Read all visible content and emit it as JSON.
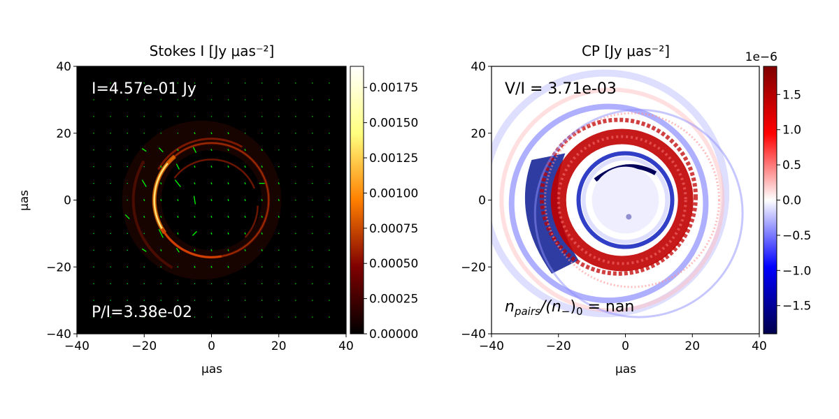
{
  "chart_data": [
    {
      "type": "heatmap",
      "title": "Stokes I [Jy μas⁻²]",
      "xlabel": "μas",
      "ylabel": "μas",
      "xlim": [
        -40,
        40
      ],
      "ylim": [
        -40,
        40
      ],
      "xticks": [
        -40,
        -20,
        0,
        20,
        40
      ],
      "yticks": [
        -40,
        -20,
        0,
        20,
        40
      ],
      "colormap": "afmhot",
      "colorbar": {
        "range": [
          0.0,
          0.0019
        ],
        "ticks": [
          "0.00000",
          "0.00025",
          "0.00050",
          "0.00075",
          "0.00100",
          "0.00125",
          "0.00150",
          "0.00175"
        ],
        "tick_values": [
          0.0,
          0.00025,
          0.0005,
          0.00075,
          0.001,
          0.00125,
          0.0015,
          0.00175
        ]
      },
      "features": {
        "photon_ring_radius": 17,
        "photon_ring_center": [
          0,
          0
        ],
        "bright_crescent_side": "left",
        "inner_secondary_ring_radius": 10
      },
      "annotations": [
        {
          "text": "I=4.57e-01 Jy",
          "position": "top-left",
          "color": "#ffffff"
        },
        {
          "text": "P/I=3.38e-02",
          "position": "bottom-left",
          "color": "#ffffff"
        }
      ],
      "polarization_ticks_color": "#00ff00",
      "grid": false
    },
    {
      "type": "heatmap",
      "title": "CP [Jy μas⁻²]",
      "xlabel": "μas",
      "ylabel": "",
      "xlim": [
        -40,
        40
      ],
      "ylim": [
        -40,
        40
      ],
      "xticks": [
        -40,
        -20,
        0,
        20,
        40
      ],
      "yticks": [
        -40,
        -20,
        0,
        20,
        40
      ],
      "colormap": "seismic",
      "colorbar": {
        "range": [
          -1.9,
          1.9
        ],
        "offset_label": "1e−6",
        "ticks": [
          "−1.5",
          "−1.0",
          "−0.5",
          "0.0",
          "0.5",
          "1.0",
          "1.5"
        ],
        "tick_values": [
          -1.5,
          -1.0,
          -0.5,
          0.0,
          0.5,
          1.0,
          1.5
        ]
      },
      "annotations": [
        {
          "text": "V/I = 3.71e-03",
          "position": "top-left",
          "color": "#000000"
        },
        {
          "text_parts": [
            "n",
            "pairs",
            "/(n",
            "−",
            ")",
            "0",
            " = nan"
          ],
          "position": "bottom-left",
          "color": "#000000"
        }
      ],
      "grid": false
    }
  ]
}
